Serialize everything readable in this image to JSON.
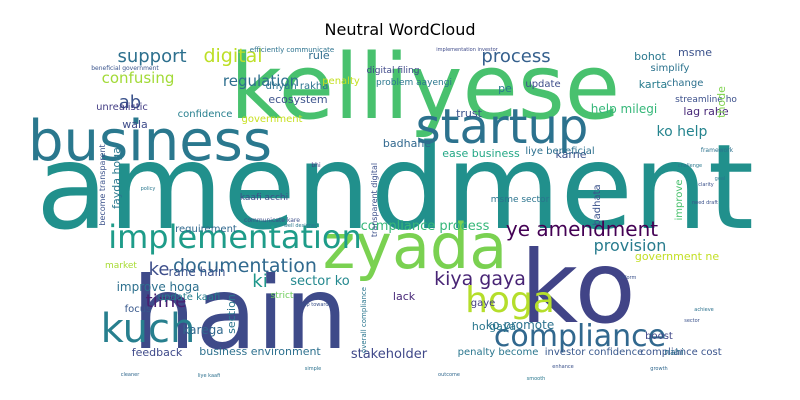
{
  "chart_data": {
    "type": "wordcloud",
    "title": "Neutral WordCloud",
    "background": "#ffffff",
    "words": [
      {
        "text": "amendment",
        "weight": 100,
        "color": "#21908c"
      },
      {
        "text": "ko",
        "weight": 88,
        "color": "#414487"
      },
      {
        "text": "hain",
        "weight": 80,
        "color": "#3e4a89"
      },
      {
        "text": "kelliyese",
        "weight": 86,
        "color": "#48c16e"
      },
      {
        "text": "business",
        "weight": 62,
        "color": "#2a788e"
      },
      {
        "text": "zyada",
        "weight": 58,
        "color": "#7ad151"
      },
      {
        "text": "startup",
        "weight": 50,
        "color": "#2c728e"
      },
      {
        "text": "kuch",
        "weight": 42,
        "color": "#277f8e"
      },
      {
        "text": "implementation",
        "weight": 36,
        "color": "#1e9c89"
      },
      {
        "text": "compliance",
        "weight": 32,
        "color": "#31688e"
      },
      {
        "text": "hoga",
        "weight": 30,
        "color": "#b5de2b"
      },
      {
        "text": "ye amendment",
        "weight": 22,
        "color": "#440154"
      },
      {
        "text": "process",
        "weight": 20,
        "color": "#35608d"
      },
      {
        "text": "documentation",
        "weight": 19,
        "color": "#30698e"
      },
      {
        "text": "kiya gaya",
        "weight": 19,
        "color": "#482475"
      },
      {
        "text": "support",
        "weight": 17,
        "color": "#2d708e"
      },
      {
        "text": "digital",
        "weight": 17,
        "color": "#bddf26"
      },
      {
        "text": "provision",
        "weight": 16,
        "color": "#287c8e"
      },
      {
        "text": "ab",
        "weight": 17,
        "color": "#3b528b"
      },
      {
        "text": "time",
        "weight": 16,
        "color": "#482071"
      },
      {
        "text": "ke",
        "weight": 16,
        "color": "#3d4e8a"
      },
      {
        "text": "ki",
        "weight": 16,
        "color": "#1f978b"
      },
      {
        "text": "ko help",
        "weight": 13,
        "color": "#25848e"
      },
      {
        "text": "regulation",
        "weight": 13,
        "color": "#2e6f8e"
      },
      {
        "text": "confusing",
        "weight": 12,
        "color": "#a2da37"
      },
      {
        "text": "compliance process",
        "weight": 12,
        "color": "#35b779"
      },
      {
        "text": "rahe hain",
        "weight": 12,
        "color": "#3b528b"
      },
      {
        "text": "sector ko",
        "weight": 12,
        "color": "#23888e"
      },
      {
        "text": "karega",
        "weight": 11,
        "color": "#31688e"
      },
      {
        "text": "improve hoga",
        "weight": 11,
        "color": "#2d708e"
      },
      {
        "text": "ko promote",
        "weight": 11,
        "color": "#2c728e"
      },
      {
        "text": "stakeholder",
        "weight": 11,
        "color": "#3f4889"
      },
      {
        "text": "business environment",
        "weight": 10,
        "color": "#2d708e"
      },
      {
        "text": "compliance cost",
        "weight": 9,
        "color": "#3a548c"
      },
      {
        "text": "feedback",
        "weight": 10,
        "color": "#3e4989"
      },
      {
        "text": "penalty become",
        "weight": 9,
        "color": "#2a768e"
      },
      {
        "text": "investor confidence",
        "weight": 9,
        "color": "#38588c"
      },
      {
        "text": "ho gaya",
        "weight": 10,
        "color": "#2a778e"
      },
      {
        "text": "lack",
        "weight": 10,
        "color": "#482878"
      },
      {
        "text": "gaye",
        "weight": 9,
        "color": "#433e85"
      },
      {
        "text": "focus",
        "weight": 10,
        "color": "#38588c"
      },
      {
        "text": "section",
        "weight": 9,
        "color": "#2b758e"
      },
      {
        "text": "update kaafi",
        "weight": 9,
        "color": "#277f8e"
      },
      {
        "text": "requirement",
        "weight": 9,
        "color": "#31688e"
      },
      {
        "text": "market",
        "weight": 8,
        "color": "#a8db34"
      },
      {
        "text": "strict",
        "weight": 8,
        "color": "#6ccd5a"
      },
      {
        "text": "boost",
        "weight": 9,
        "color": "#3f4788"
      },
      {
        "text": "nahi",
        "weight": 8,
        "color": "#2d708e"
      },
      {
        "text": "government ne",
        "weight": 9,
        "color": "#c2df23"
      },
      {
        "text": "government",
        "weight": 9,
        "color": "#c8e020"
      },
      {
        "text": "confidence",
        "weight": 8,
        "color": "#277f8e"
      },
      {
        "text": "wala",
        "weight": 9,
        "color": "#3e4c8a"
      },
      {
        "text": "unrealistic",
        "weight": 8,
        "color": "#433d84"
      },
      {
        "text": "ecosystem",
        "weight": 8,
        "color": "#3b528b"
      },
      {
        "text": "dhyan rakha",
        "weight": 8,
        "color": "#2c738e"
      },
      {
        "text": "penalty",
        "weight": 8,
        "color": "#c5e021"
      },
      {
        "text": "rule",
        "weight": 9,
        "color": "#2f6c8e"
      },
      {
        "text": "digital filing",
        "weight": 8,
        "color": "#3f4889"
      },
      {
        "text": "problem aayengi",
        "weight": 7,
        "color": "#2a778e"
      },
      {
        "text": "update",
        "weight": 8,
        "color": "#3d4d8a"
      },
      {
        "text": "trust",
        "weight": 9,
        "color": "#3a538b"
      },
      {
        "text": "badhane",
        "weight": 9,
        "color": "#31688e"
      },
      {
        "text": "karne",
        "weight": 9,
        "color": "#3b528b"
      },
      {
        "text": "help milegi",
        "weight": 9,
        "color": "#35b779"
      },
      {
        "text": "lag rahe",
        "weight": 9,
        "color": "#482878"
      },
      {
        "text": "karta",
        "weight": 9,
        "color": "#287d8e"
      },
      {
        "text": "change",
        "weight": 8,
        "color": "#2d718e"
      },
      {
        "text": "streamline ho",
        "weight": 8,
        "color": "#3c508b"
      },
      {
        "text": "bohot",
        "weight": 9,
        "color": "#2a788e"
      },
      {
        "text": "msme",
        "weight": 9,
        "color": "#3b528b"
      },
      {
        "text": "simplify",
        "weight": 8,
        "color": "#2c738e"
      },
      {
        "text": "thode",
        "weight": 9,
        "color": "#7fd34e"
      },
      {
        "text": "fayda hoga",
        "weight": 10,
        "color": "#2a788e"
      },
      {
        "text": "ease business",
        "weight": 9,
        "color": "#22a785"
      },
      {
        "text": "liye beneficial",
        "weight": 9,
        "color": "#2d708e"
      },
      {
        "text": "pe",
        "weight": 9,
        "color": "#2a788e"
      },
      {
        "text": "kaafi acchi",
        "weight": 8,
        "color": "#3d4e8a"
      },
      {
        "text": "msme sector",
        "weight": 8,
        "color": "#2b748e"
      },
      {
        "text": "transparent digital",
        "weight": 7,
        "color": "#3c4f8a"
      },
      {
        "text": "badhata",
        "weight": 8,
        "color": "#3b528b"
      },
      {
        "text": "improve",
        "weight": 8,
        "color": "#4ac16d"
      },
      {
        "text": "become transparent",
        "weight": 7,
        "color": "#3b528b"
      },
      {
        "text": "efficiently communicate",
        "weight": 6,
        "color": "#2c728e"
      },
      {
        "text": "beneficial government",
        "weight": 5,
        "color": "#3a548c"
      },
      {
        "text": "overall compliance",
        "weight": 6,
        "color": "#2a768e"
      },
      {
        "text": "communicate kare",
        "weight": 5,
        "color": "#3c4f8a"
      },
      {
        "text": "framework",
        "weight": 5,
        "color": "#2c728e"
      },
      {
        "text": "clarity",
        "weight": 4,
        "color": "#3b528b"
      },
      {
        "text": "challenge",
        "weight": 4,
        "color": "#2a788e"
      },
      {
        "text": "implementation investor",
        "weight": 4,
        "color": "#3e4a89"
      },
      {
        "text": "bhi",
        "weight": 5,
        "color": "#433e85"
      },
      {
        "text": "step towards",
        "weight": 4,
        "color": "#3b528b"
      },
      {
        "text": "well designed",
        "weight": 4,
        "color": "#2a788e"
      },
      {
        "text": "cleaner",
        "weight": 4,
        "color": "#31688e"
      },
      {
        "text": "need draft",
        "weight": 4,
        "color": "#3b528b"
      },
      {
        "text": "liye kaafi",
        "weight": 4,
        "color": "#2d708e"
      },
      {
        "text": "goal",
        "weight": 4,
        "color": "#2a788e"
      },
      {
        "text": "enhance",
        "weight": 4,
        "color": "#3b528b"
      },
      {
        "text": "achieve",
        "weight": 4,
        "color": "#2c728e"
      },
      {
        "text": "growth",
        "weight": 4,
        "color": "#31688e"
      },
      {
        "text": "sector",
        "weight": 4,
        "color": "#3b528b"
      },
      {
        "text": "policy",
        "weight": 4,
        "color": "#2a788e"
      },
      {
        "text": "simple",
        "weight": 4,
        "color": "#2c728e"
      },
      {
        "text": "reform",
        "weight": 4,
        "color": "#3b528b"
      },
      {
        "text": "outcome",
        "weight": 4,
        "color": "#31688e"
      },
      {
        "text": "smooth",
        "weight": 4,
        "color": "#2a788e"
      }
    ]
  }
}
